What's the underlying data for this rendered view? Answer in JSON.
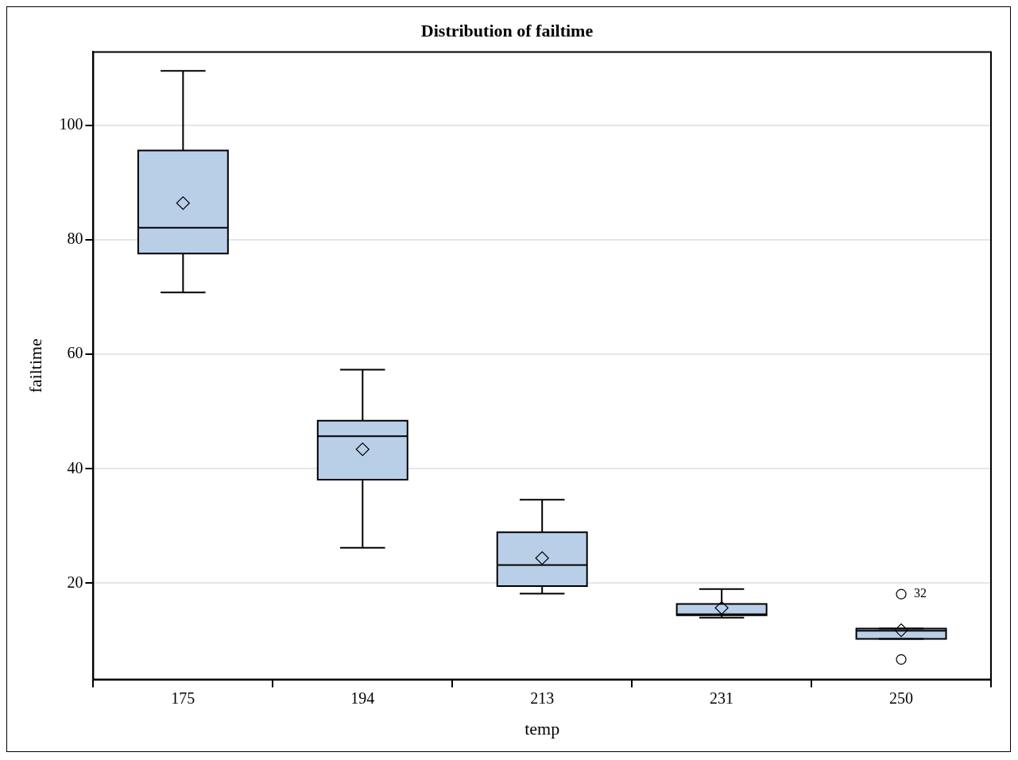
{
  "chart_data": {
    "type": "box",
    "title": "Distribution of failtime",
    "xlabel": "temp",
    "ylabel": "failtime",
    "categories": [
      "175",
      "194",
      "213",
      "231",
      "250"
    ],
    "color": "#b9cfe8",
    "boxes": [
      {
        "low": 70.8,
        "q1": 77.6,
        "median": 82.1,
        "q3": 95.6,
        "high": 109.5,
        "mean": 86.4
      },
      {
        "low": 26.2,
        "q1": 38.1,
        "median": 45.7,
        "q3": 48.4,
        "high": 57.3,
        "mean": 43.4
      },
      {
        "low": 18.2,
        "q1": 19.5,
        "median": 23.2,
        "q3": 28.9,
        "high": 34.6,
        "mean": 24.4
      },
      {
        "low": 14.0,
        "q1": 14.4,
        "median": 14.6,
        "q3": 16.4,
        "high": 19.0,
        "mean": 15.7
      },
      {
        "low": 10.3,
        "q1": 10.3,
        "median": 11.7,
        "q3": 12.1,
        "high": 12.1,
        "mean": 11.8,
        "outliers": [
          18.1,
          6.7
        ]
      }
    ],
    "ylim": [
      3.2,
      112.8
    ],
    "yticks": [
      20,
      40,
      60,
      80,
      100
    ],
    "grid": "y",
    "legend": false,
    "annotations": [
      "32"
    ]
  }
}
